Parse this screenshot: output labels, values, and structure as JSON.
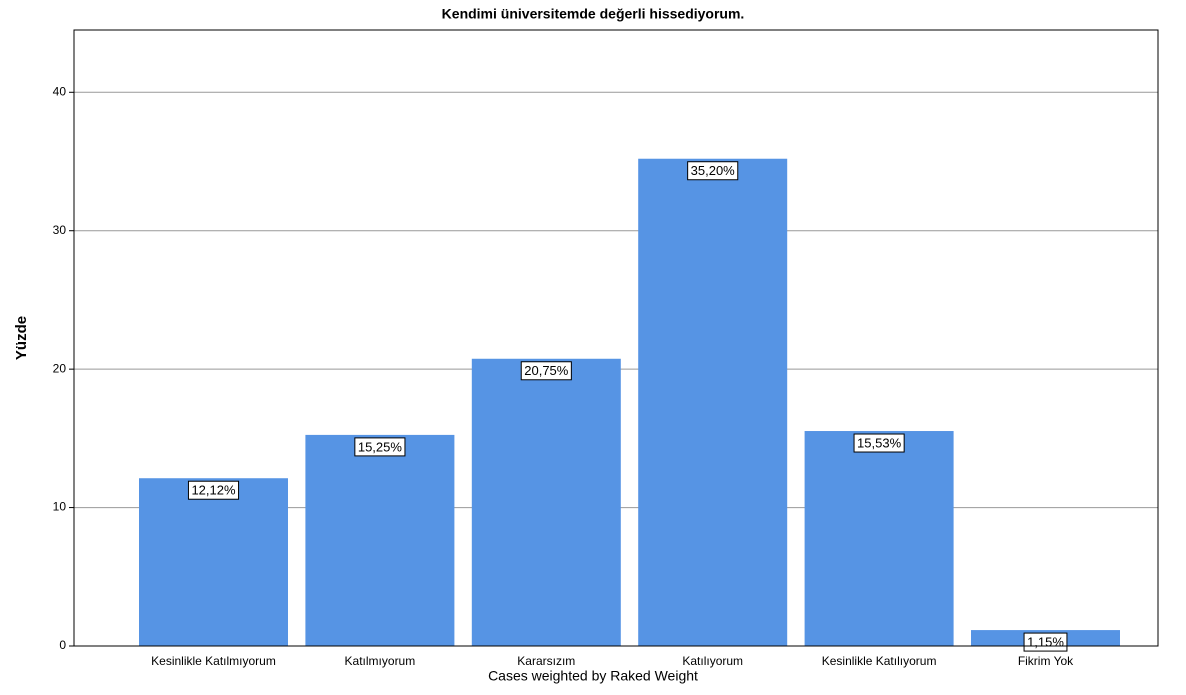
{
  "chart_data": {
    "type": "bar",
    "title": "Kendimi üniversitemde değerli hissediyorum.",
    "y_label": "Yüzde",
    "footnote": "Cases weighted by Raked Weight",
    "categories": [
      "Kesinlikle Katılmıyorum",
      "Katılmıyorum",
      "Kararsızım",
      "Katılıyorum",
      "Kesinlikle Katılıyorum",
      "Fikrim Yok"
    ],
    "values": [
      12.12,
      15.25,
      20.75,
      35.2,
      15.53,
      1.15
    ],
    "value_labels": [
      "12,12%",
      "15,25%",
      "20,75%",
      "35,20%",
      "15,53%",
      "1,15%"
    ],
    "color": "#5694e4",
    "ylim": [
      0,
      44.5
    ],
    "yticks": [
      0,
      10,
      20,
      30,
      40
    ],
    "grid": true
  }
}
